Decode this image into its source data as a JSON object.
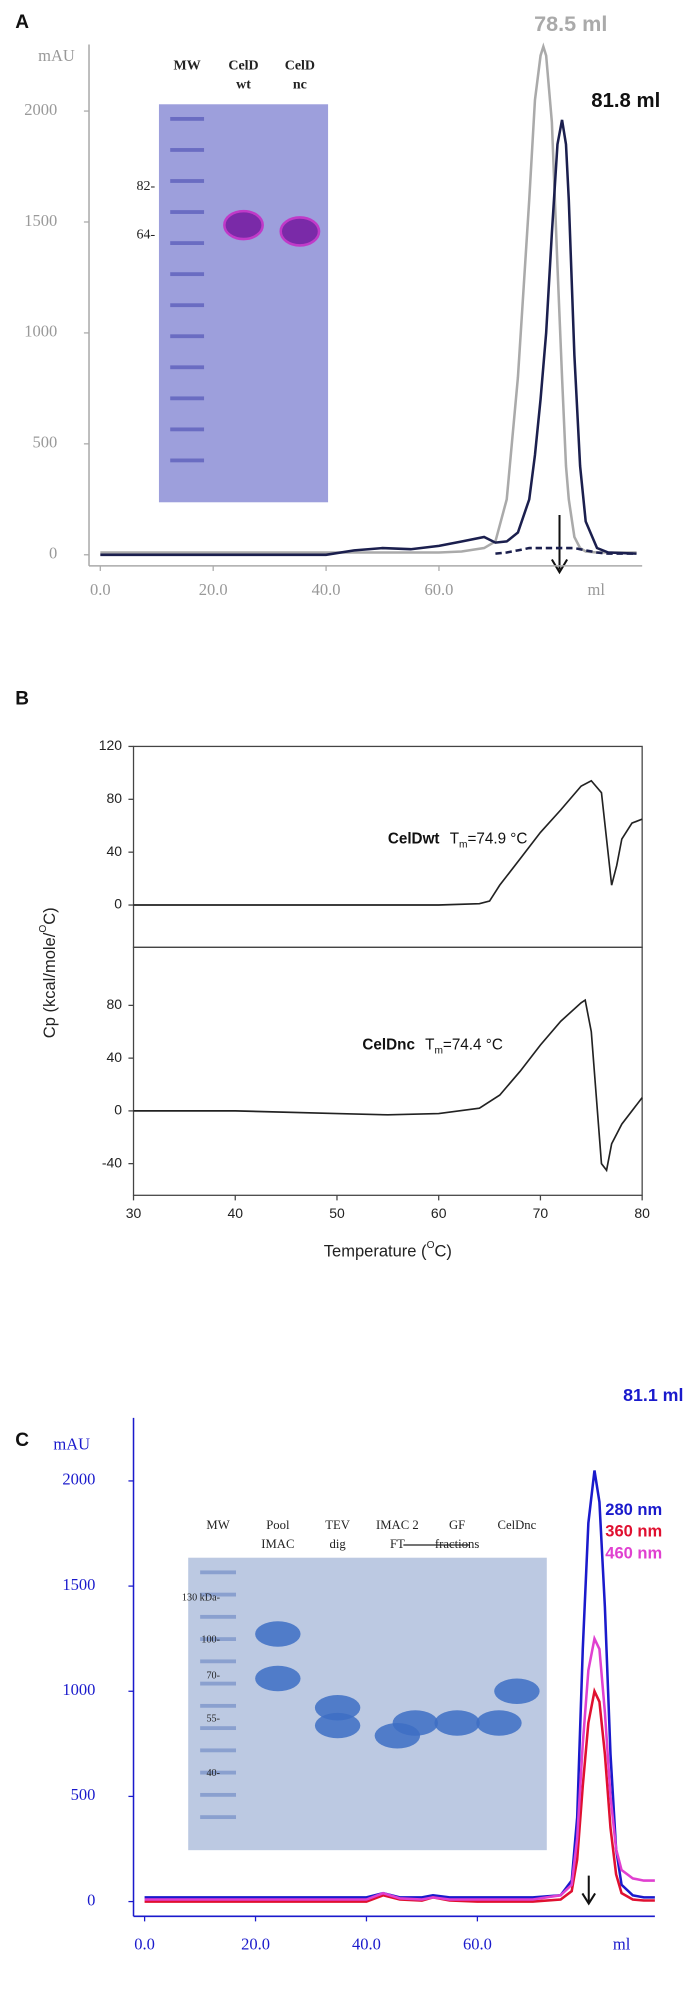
{
  "chart_data": [
    {
      "type": "line",
      "panel": "A",
      "y_label": "mAU",
      "x_label": "ml",
      "x": [
        0,
        10,
        20,
        30,
        40,
        45,
        50,
        55,
        60,
        64,
        68,
        70,
        72,
        74,
        76,
        77,
        78,
        78.5,
        79,
        80,
        81,
        81.8,
        82.5,
        83,
        84,
        85,
        86,
        88,
        90,
        95
      ],
      "xlim": [
        -2,
        96
      ],
      "xticks": [
        {
          "value": 0,
          "label": "0.0"
        },
        {
          "value": 20,
          "label": "20.0"
        },
        {
          "value": 40,
          "label": "40.0"
        },
        {
          "value": 60,
          "label": "60.0"
        }
      ],
      "ylim": [
        -50,
        2300
      ],
      "yticks": [
        0,
        500,
        1000,
        1500,
        2000
      ],
      "series": [
        {
          "color": "#aaaaaa",
          "values": [
            10,
            10,
            10,
            10,
            10,
            10,
            10,
            10,
            10,
            15,
            30,
            60,
            250,
            800,
            1600,
            2050,
            2250,
            2290,
            2250,
            1950,
            1300,
            800,
            400,
            250,
            80,
            30,
            15,
            10,
            10,
            10
          ]
        },
        {
          "color": "#1b1f4e",
          "values": [
            0,
            0,
            0,
            0,
            0,
            20,
            30,
            25,
            40,
            60,
            80,
            55,
            60,
            100,
            250,
            450,
            700,
            850,
            1000,
            1450,
            1850,
            1960,
            1850,
            1600,
            900,
            400,
            150,
            30,
            10,
            5
          ]
        },
        {
          "color": "#1b1f4e",
          "dashed": true,
          "values": [
            null,
            null,
            null,
            null,
            null,
            null,
            null,
            null,
            null,
            null,
            null,
            5,
            10,
            20,
            30,
            30,
            30,
            30,
            30,
            30,
            30,
            30,
            30,
            30,
            30,
            25,
            20,
            10,
            5,
            5
          ]
        }
      ],
      "annotations": [
        {
          "text": "78.5 ml",
          "color": "#aaaaaa"
        },
        {
          "text": "81.8 ml",
          "color": "#111111"
        }
      ],
      "inset": {
        "lanes": [
          [
            "MW"
          ],
          [
            "CelD",
            "wt"
          ],
          [
            "CelD",
            "nc"
          ]
        ],
        "markers": [
          "82-",
          "64-"
        ]
      }
    },
    {
      "type": "line",
      "panel": "B",
      "y_label": [
        "Cp (kcal/mole/",
        "O",
        "C)"
      ],
      "x": [
        30,
        40,
        50,
        60,
        64,
        65,
        66,
        68,
        70,
        72,
        74,
        75,
        76,
        76.5,
        77,
        77.5,
        78,
        79,
        80
      ],
      "xlim": [
        30,
        80
      ],
      "ylim": [
        -32,
        120
      ],
      "yticks": [
        0,
        40,
        80,
        120
      ],
      "series": [
        {
          "color": "#222222",
          "values": [
            0,
            0,
            0,
            0,
            1,
            3,
            15,
            35,
            55,
            72,
            90,
            94,
            85,
            50,
            15,
            30,
            50,
            62,
            65
          ]
        }
      ],
      "annotation": {
        "name": "CelDwt",
        "symbol": "T",
        "subscript": "m",
        "text": "=74.9 °C"
      }
    },
    {
      "type": "line",
      "x_label": [
        "Temperature (",
        "O",
        "C)"
      ],
      "x": [
        30,
        40,
        50,
        55,
        60,
        64,
        66,
        68,
        70,
        72,
        74,
        74.4,
        75,
        75.5,
        76,
        76.5,
        77,
        78,
        80
      ],
      "xlim": [
        30,
        80
      ],
      "xticks": [
        30,
        40,
        50,
        60,
        70,
        80
      ],
      "ylim": [
        -64,
        124
      ],
      "yticks": [
        -40,
        0,
        40,
        80
      ],
      "series": [
        {
          "color": "#222222",
          "values": [
            0,
            0,
            -2,
            -3,
            -2,
            2,
            12,
            30,
            50,
            68,
            82,
            84,
            60,
            10,
            -40,
            -45,
            -25,
            -10,
            10
          ]
        }
      ],
      "annotation": {
        "name": "CelDnc",
        "symbol": "T",
        "subscript": "m",
        "text": "=74.4 °C"
      }
    },
    {
      "type": "line",
      "panel": "C",
      "y_label": "mAU",
      "x_label": "ml",
      "x": [
        0,
        10,
        20,
        30,
        40,
        43,
        46,
        50,
        52,
        55,
        60,
        70,
        75,
        77,
        78,
        79,
        80,
        81.1,
        82,
        83,
        84,
        85,
        86,
        88,
        90,
        92
      ],
      "xlim": [
        -2,
        92
      ],
      "xticks": [
        {
          "value": 0,
          "label": "0.0"
        },
        {
          "value": 20,
          "label": "20.0"
        },
        {
          "value": 40,
          "label": "40.0"
        },
        {
          "value": 60,
          "label": "60.0"
        }
      ],
      "ylim": [
        -70,
        2300
      ],
      "yticks": [
        0,
        500,
        1000,
        1500,
        2000
      ],
      "legend": "right",
      "series": [
        {
          "name": "280 nm",
          "color": "#1a1acc",
          "values": [
            20,
            20,
            20,
            20,
            20,
            40,
            20,
            20,
            30,
            20,
            20,
            20,
            30,
            100,
            400,
            1200,
            1800,
            2050,
            1900,
            1400,
            700,
            250,
            80,
            30,
            20,
            20
          ]
        },
        {
          "name": "360 nm",
          "color": "#e01030",
          "values": [
            0,
            0,
            0,
            0,
            0,
            30,
            10,
            5,
            20,
            5,
            0,
            0,
            10,
            50,
            200,
            550,
            850,
            1000,
            950,
            700,
            350,
            130,
            40,
            10,
            5,
            5
          ]
        },
        {
          "name": "460 nm",
          "color": "#e040d0",
          "values": [
            10,
            10,
            10,
            10,
            10,
            40,
            15,
            10,
            20,
            10,
            10,
            10,
            30,
            80,
            300,
            750,
            1100,
            1250,
            1200,
            900,
            500,
            250,
            150,
            110,
            100,
            100
          ]
        }
      ],
      "annotations": [
        {
          "text": "81.1 ml",
          "color": "#1a1acc"
        }
      ],
      "inset": {
        "lanes": [
          [
            "MW"
          ],
          [
            "Pool",
            "IMAC"
          ],
          [
            "TEV",
            "dig"
          ],
          [
            "IMAC 2",
            "FT"
          ],
          [
            "GF",
            "fractions"
          ],
          [
            "CelDnc"
          ]
        ],
        "markers": [
          "130 kDa-",
          "100-",
          "70-",
          "55-",
          "40-"
        ]
      }
    }
  ]
}
